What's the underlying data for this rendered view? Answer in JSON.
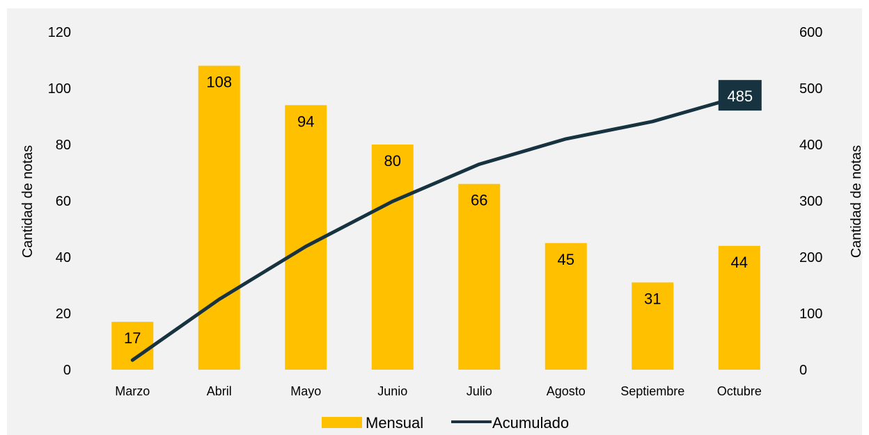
{
  "chart_data": {
    "type": "bar",
    "categories": [
      "Marzo",
      "Abril",
      "Mayo",
      "Junio",
      "Julio",
      "Agosto",
      "Septiembre",
      "Octubre"
    ],
    "series": [
      {
        "name": "Mensual",
        "kind": "bar",
        "axis": "left",
        "color": "#FFC000",
        "values": [
          17,
          108,
          94,
          80,
          66,
          45,
          31,
          44
        ],
        "data_labels": [
          "17",
          "108",
          "94",
          "80",
          "66",
          "45",
          "31",
          "44"
        ]
      },
      {
        "name": "Acumulado",
        "kind": "line",
        "axis": "right",
        "color": "#17333F",
        "values": [
          17,
          125,
          219,
          299,
          365,
          410,
          441,
          485
        ],
        "end_label": "485"
      }
    ],
    "ylabel_left": "Cantidad de notas",
    "ylabel_right": "Cantidad de notas",
    "ylim_left": [
      0,
      120
    ],
    "ylim_right": [
      0,
      600
    ],
    "yticks_left": [
      "0",
      "20",
      "40",
      "60",
      "80",
      "100",
      "120"
    ],
    "yticks_right": [
      "0",
      "100",
      "200",
      "300",
      "400",
      "500",
      "600"
    ],
    "grid": false,
    "legend_position": "bottom"
  }
}
